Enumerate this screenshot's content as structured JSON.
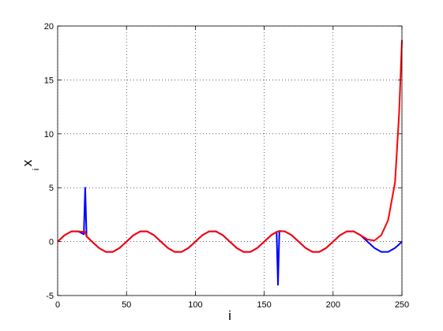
{
  "chart_data": {
    "type": "line",
    "xlabel": "i",
    "ylabel": "x",
    "ylabel_subscript": "i",
    "x": [
      0,
      5,
      10,
      15,
      19,
      20,
      21,
      25,
      30,
      35,
      40,
      45,
      50,
      55,
      60,
      65,
      70,
      75,
      80,
      85,
      90,
      95,
      100,
      105,
      110,
      115,
      120,
      125,
      130,
      135,
      140,
      145,
      150,
      155,
      159,
      160,
      161,
      165,
      170,
      175,
      180,
      185,
      190,
      195,
      200,
      205,
      210,
      215,
      220,
      225,
      230,
      235,
      240,
      245,
      248,
      250
    ],
    "series": [
      {
        "color": "#0000ff",
        "values": [
          0,
          0.59,
          0.95,
          0.95,
          0.68,
          5,
          0.48,
          0,
          -0.59,
          -0.95,
          -0.95,
          -0.59,
          0,
          0.59,
          0.95,
          0.95,
          0.59,
          0,
          -0.59,
          -0.95,
          -0.95,
          -0.59,
          0,
          0.59,
          0.95,
          0.95,
          0.59,
          0,
          -0.59,
          -0.95,
          -0.95,
          -0.59,
          0,
          0.59,
          0.9,
          -4,
          0.98,
          0.95,
          0.59,
          0,
          -0.59,
          -0.95,
          -0.95,
          -0.59,
          0,
          0.59,
          0.95,
          0.95,
          0.59,
          0,
          -0.59,
          -0.95,
          -0.95,
          -0.59,
          -0.25,
          0
        ]
      },
      {
        "color": "#ff0000",
        "values": [
          0,
          0.59,
          0.95,
          0.95,
          0.9,
          0.9,
          0.5,
          0,
          -0.59,
          -0.95,
          -0.95,
          -0.59,
          0,
          0.59,
          0.95,
          0.95,
          0.59,
          0,
          -0.59,
          -0.95,
          -0.95,
          -0.59,
          0,
          0.59,
          0.95,
          0.95,
          0.59,
          0,
          -0.59,
          -0.95,
          -0.95,
          -0.59,
          0,
          0.59,
          0.9,
          0.95,
          0.98,
          0.95,
          0.59,
          0,
          -0.59,
          -0.95,
          -0.95,
          -0.59,
          0,
          0.59,
          0.95,
          0.95,
          0.59,
          0.2,
          0.1,
          0.6,
          2,
          5.5,
          12,
          18.7
        ]
      }
    ],
    "xlim": [
      0,
      250
    ],
    "xticks": [
      0,
      50,
      100,
      150,
      200,
      250
    ],
    "ylim": [
      -5,
      20
    ],
    "yticks": [
      -5,
      0,
      5,
      10,
      15,
      20
    ],
    "grid": true
  }
}
